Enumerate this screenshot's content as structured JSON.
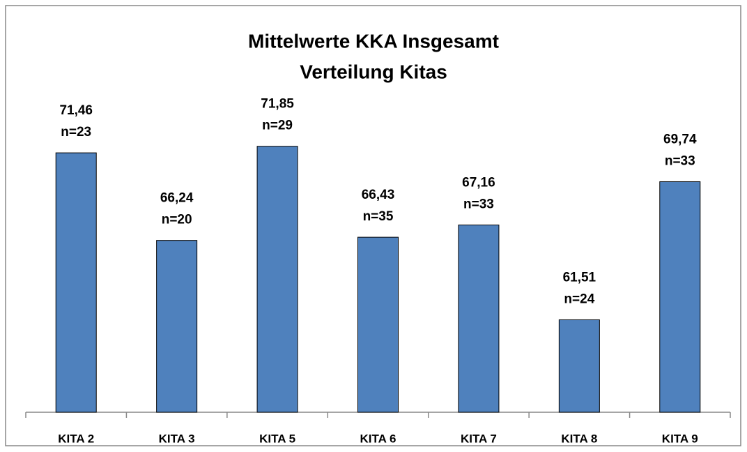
{
  "chart_data": {
    "type": "bar",
    "title": "Mittelwerte KKA Insgesamt",
    "subtitle": "Verteilung Kitas",
    "categories": [
      "KITA 2",
      "KITA 3",
      "KITA 5",
      "KITA 6",
      "KITA 7",
      "KITA 8",
      "KITA 9"
    ],
    "values": [
      71.46,
      66.24,
      71.85,
      66.43,
      67.16,
      61.51,
      69.74
    ],
    "value_labels": [
      "71,46",
      "66,24",
      "71,85",
      "66,43",
      "67,16",
      "61,51",
      "69,74"
    ],
    "annotations": [
      "n=23",
      "n=20",
      "n=29",
      "n=35",
      "n=33",
      "n=24",
      "n=33"
    ],
    "color": "#4f81bd",
    "ylim": [
      56,
      74
    ]
  }
}
